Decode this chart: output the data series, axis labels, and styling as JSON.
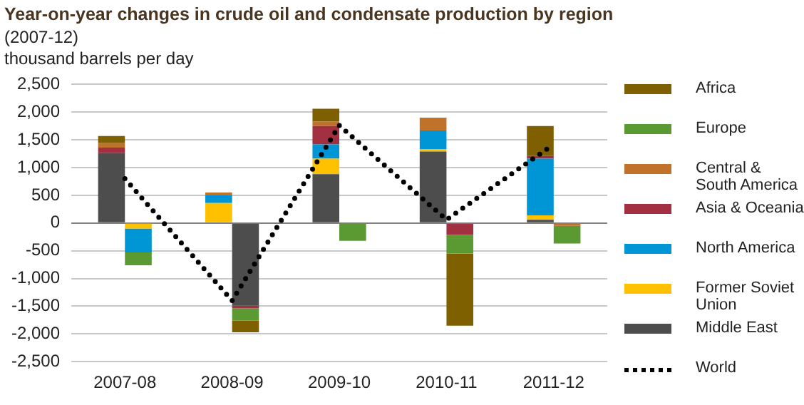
{
  "chart_data": {
    "type": "bar",
    "title": "Year-on-year changes in crude oil and condensate production by region",
    "subtitle": "(2007-12)",
    "ylabel": "thousand barrels per day",
    "categories": [
      "2007-08",
      "2008-09",
      "2009-10",
      "2010-11",
      "2011-12"
    ],
    "stacked": true,
    "grid": "y",
    "legend": "right",
    "ylim": [
      -2500,
      2500
    ],
    "yticks": [
      {
        "value": -2500,
        "label": "-2,500"
      },
      {
        "value": -2000,
        "label": "-2,000"
      },
      {
        "value": -1500,
        "label": "-1,500"
      },
      {
        "value": -1000,
        "label": "-1,000"
      },
      -500,
      0,
      500,
      {
        "value": 1000,
        "label": "1,000"
      },
      {
        "value": 1500,
        "label": "1,500"
      },
      {
        "value": 2000,
        "label": "2,000"
      },
      {
        "value": 2500,
        "label": "2,500"
      }
    ],
    "series": [
      {
        "name": "Middle East",
        "color": "#4d4d4d",
        "values": [
          1260,
          -1490,
          880,
          1290,
          60
        ]
      },
      {
        "name": "Former Soviet Union",
        "color": "#ffc000",
        "values": [
          -100,
          360,
          280,
          40,
          80
        ]
      },
      {
        "name": "North America",
        "color": "#0096d6",
        "values": [
          -430,
          150,
          260,
          340,
          1020
        ]
      },
      {
        "name": "Asia & Oceania",
        "color": "#a33040",
        "values": [
          100,
          -50,
          330,
          -210,
          50
        ]
      },
      {
        "name": "Central & South America",
        "color": "#c0722a",
        "values": [
          80,
          40,
          80,
          230,
          -50
        ]
      },
      {
        "name": "Europe",
        "color": "#5b9a32",
        "values": [
          -230,
          -220,
          -320,
          -340,
          -320
        ]
      },
      {
        "name": "Africa",
        "color": "#7f6000",
        "values": [
          130,
          -210,
          230,
          -1300,
          540
        ]
      },
      {
        "name": "World",
        "type": "line",
        "color": "#000000",
        "line_style": "dotted",
        "marker": "none",
        "values": [
          800,
          -1400,
          1760,
          60,
          1420
        ]
      }
    ]
  }
}
